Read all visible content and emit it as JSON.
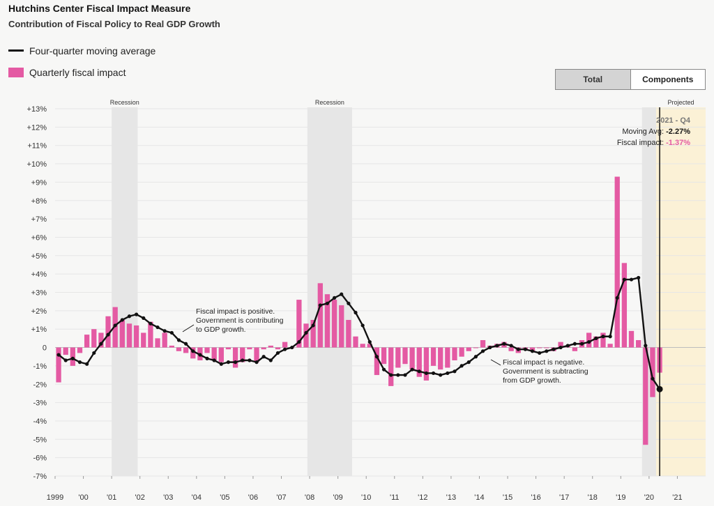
{
  "header": {
    "title": "Hutchins Center Fiscal Impact Measure",
    "subtitle": "Contribution of Fiscal Policy to Real GDP Growth"
  },
  "legend": {
    "line_label": "Four-quarter moving average",
    "bar_label": "Quarterly fiscal impact"
  },
  "toggle": {
    "total_label": "Total",
    "components_label": "Components"
  },
  "tooltip": {
    "date": "2021 - Q4",
    "avg_label": "Moving Avg:",
    "avg_value": "-2.27%",
    "fi_label": "Fiscal impact:",
    "fi_value": "-1.37%"
  },
  "colors": {
    "bar": "#e45aa3",
    "line": "#111111",
    "recession": "#e6e6e6",
    "projected": "#fbf1d6"
  },
  "chart_data": {
    "type": "bar",
    "title": "Hutchins Center Fiscal Impact Measure",
    "subtitle": "Contribution of Fiscal Policy to Real GDP Growth",
    "xlabel": "",
    "ylabel": "",
    "ylim": [
      -7,
      13
    ],
    "y_ticks": [
      13,
      12,
      11,
      10,
      9,
      8,
      7,
      6,
      5,
      4,
      3,
      2,
      1,
      0,
      -1,
      -2,
      -3,
      -4,
      -5,
      -6,
      -7
    ],
    "y_tick_labels": [
      "+13%",
      "+12%",
      "+11%",
      "+10%",
      "+9%",
      "+8%",
      "+7%",
      "+6%",
      "+5%",
      "+4%",
      "+3%",
      "+2%",
      "+1%",
      "0",
      "-1%",
      "-2%",
      "-3%",
      "-4%",
      "-5%",
      "-6%",
      "-7%"
    ],
    "x_start": 1999.0,
    "x_end": 2022.0,
    "x_tick_labels": [
      {
        "year": 1999,
        "label": "1999"
      },
      {
        "year": 2000,
        "label": "'00"
      },
      {
        "year": 2001,
        "label": "'01"
      },
      {
        "year": 2002,
        "label": "'02"
      },
      {
        "year": 2003,
        "label": "'03"
      },
      {
        "year": 2004,
        "label": "'04"
      },
      {
        "year": 2005,
        "label": "'05"
      },
      {
        "year": 2006,
        "label": "'06"
      },
      {
        "year": 2007,
        "label": "'07"
      },
      {
        "year": 2008,
        "label": "'08"
      },
      {
        "year": 2009,
        "label": "'09"
      },
      {
        "year": 2010,
        "label": "'10"
      },
      {
        "year": 2011,
        "label": "'11"
      },
      {
        "year": 2012,
        "label": "'12"
      },
      {
        "year": 2013,
        "label": "'13"
      },
      {
        "year": 2014,
        "label": "'14"
      },
      {
        "year": 2015,
        "label": "'15"
      },
      {
        "year": 2016,
        "label": "'16"
      },
      {
        "year": 2017,
        "label": "'17"
      },
      {
        "year": 2018,
        "label": "'18"
      },
      {
        "year": 2019,
        "label": "'19"
      },
      {
        "year": 2020,
        "label": "'20"
      },
      {
        "year": 2021,
        "label": "'21"
      }
    ],
    "shaded_regions": [
      {
        "label": "Recession",
        "start": 2001.0,
        "end": 2001.92
      },
      {
        "label": "Recession",
        "start": 2007.92,
        "end": 2009.5
      },
      {
        "label": "",
        "start": 2019.75,
        "end": 2020.25
      },
      {
        "label": "Projected",
        "start": 2020.25,
        "end": 2022.0
      }
    ],
    "annotations": [
      {
        "lines": [
          "Fiscal impact is positive.",
          "Government is contributing",
          "to GDP growth."
        ],
        "x": 2003.4,
        "y": 0.9
      },
      {
        "lines": [
          "Fiscal impact is negative.",
          "Government is subtracting",
          "from GDP growth."
        ],
        "x": 2014.05,
        "y": -0.95
      }
    ],
    "series": [
      {
        "name": "Quarterly fiscal impact",
        "kind": "bar",
        "values": [
          -1.9,
          -0.4,
          -1.0,
          -0.3,
          0.7,
          1.0,
          0.8,
          1.7,
          2.2,
          1.5,
          1.3,
          1.2,
          0.8,
          1.4,
          0.5,
          0.8,
          0.1,
          -0.2,
          -0.3,
          -0.6,
          -0.7,
          -0.3,
          -0.7,
          -0.8,
          -0.1,
          -1.1,
          -0.8,
          -0.1,
          -0.8,
          -0.1,
          0.1,
          -0.1,
          0.3,
          0.0,
          2.6,
          1.3,
          1.5,
          3.5,
          2.9,
          2.6,
          2.3,
          1.5,
          0.6,
          0.2,
          0.2,
          -1.5,
          -0.9,
          -2.1,
          -1.1,
          -0.9,
          -1.2,
          -1.6,
          -1.8,
          -1.0,
          -1.2,
          -1.1,
          -0.7,
          -0.5,
          -0.2,
          0.0,
          0.4,
          0.1,
          0.2,
          0.3,
          -0.2,
          -0.3,
          -0.1,
          -0.2,
          0.0,
          0.0,
          -0.2,
          0.3,
          0.1,
          -0.2,
          0.4,
          0.8,
          0.6,
          0.8,
          0.2,
          9.3,
          4.6,
          0.9,
          0.4,
          -5.3,
          -2.7,
          -1.37
        ]
      },
      {
        "name": "Four-quarter moving average",
        "kind": "line",
        "values": [
          -0.4,
          -0.7,
          -0.6,
          -0.8,
          -0.9,
          -0.3,
          0.2,
          0.7,
          1.2,
          1.5,
          1.7,
          1.8,
          1.6,
          1.3,
          1.1,
          0.9,
          0.8,
          0.4,
          0.2,
          -0.2,
          -0.4,
          -0.6,
          -0.7,
          -0.9,
          -0.8,
          -0.8,
          -0.7,
          -0.7,
          -0.8,
          -0.5,
          -0.7,
          -0.3,
          -0.1,
          0.0,
          0.3,
          0.8,
          1.2,
          2.3,
          2.4,
          2.7,
          2.9,
          2.4,
          1.9,
          1.2,
          0.3,
          -0.5,
          -1.2,
          -1.5,
          -1.5,
          -1.5,
          -1.2,
          -1.3,
          -1.4,
          -1.4,
          -1.5,
          -1.4,
          -1.3,
          -1.0,
          -0.8,
          -0.5,
          -0.2,
          0.0,
          0.1,
          0.2,
          0.1,
          -0.1,
          -0.1,
          -0.2,
          -0.3,
          -0.2,
          -0.1,
          0.0,
          0.1,
          0.2,
          0.2,
          0.3,
          0.5,
          0.6,
          0.6,
          2.7,
          3.7,
          3.7,
          3.8,
          0.1,
          -1.7,
          -2.27
        ]
      }
    ]
  }
}
